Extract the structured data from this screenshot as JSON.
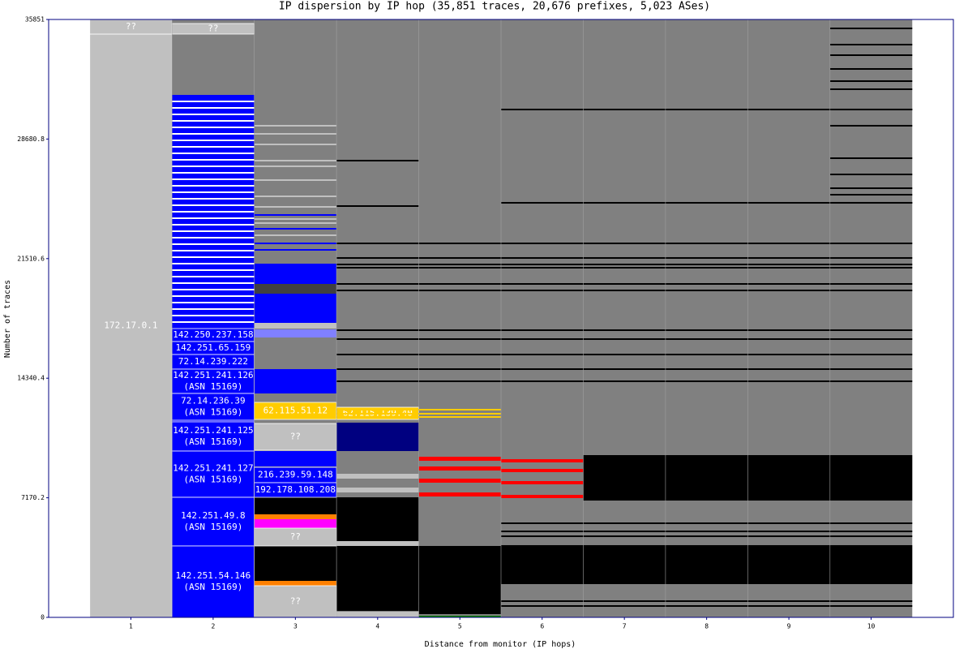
{
  "chart_data": {
    "type": "dispersion",
    "title": "IP dispersion by IP hop (35,851 traces, 20,676 prefixes, 5,023 ASes)",
    "xlabel": "Distance from monitor (IP hops)",
    "ylabel": "Number of traces",
    "xlim": [
      0,
      11
    ],
    "ylim": [
      0,
      35851
    ],
    "xticks": [
      1,
      2,
      3,
      4,
      5,
      6,
      7,
      8,
      9,
      10
    ],
    "yticks": [
      0,
      7170.2,
      14340.4,
      21510.6,
      28680.8,
      35851
    ],
    "segments": [
      {
        "hops": [
          1
        ],
        "range": [
          0,
          34976
        ],
        "color": "#c0c0c0",
        "label": "172.17.0.1"
      },
      {
        "hops": [
          1
        ],
        "range": [
          34976,
          35851
        ],
        "color": "#c0c0c0",
        "label": "??"
      },
      {
        "hops": [
          2,
          3,
          4,
          5,
          6,
          7,
          8,
          9,
          10
        ],
        "range": [
          0,
          35851
        ],
        "color": "#808080"
      },
      {
        "hops": [
          2
        ],
        "range": [
          34976,
          35608
        ],
        "color": "#c0c0c0",
        "label": "??"
      },
      {
        "hops": [
          2
        ],
        "range": [
          0,
          31328
        ],
        "color": "#0000ff"
      },
      {
        "hops": [
          3
        ],
        "range": [
          17561,
          21209
        ],
        "color": "#0000ff"
      },
      {
        "hops": [
          3
        ],
        "range": [
          19409,
          19993
        ],
        "color": "#404040"
      },
      {
        "hops": [
          3
        ],
        "range": [
          17318,
          17658
        ],
        "color": "#c0c0c0"
      },
      {
        "hops": [
          3
        ],
        "range": [
          16782,
          17269
        ],
        "color": "#8080ff"
      },
      {
        "hops": [
          3
        ],
        "range": [
          13426,
          14885
        ],
        "color": "#0000ff"
      },
      {
        "hops": [
          3
        ],
        "range": [
          9048,
          9972
        ],
        "color": "#0000ff"
      },
      {
        "hops": [
          3
        ],
        "range": [
          6178,
          7199
        ],
        "color": "#000000"
      },
      {
        "hops": [
          3
        ],
        "range": [
          5886,
          6178
        ],
        "color": "#ff8000"
      },
      {
        "hops": [
          3
        ],
        "range": [
          5351,
          5886
        ],
        "color": "#ff00ff"
      },
      {
        "hops": [
          3
        ],
        "range": [
          2189,
          4281
        ],
        "color": "#000000"
      },
      {
        "hops": [
          3
        ],
        "range": [
          1897,
          2189
        ],
        "color": "#ff8000"
      },
      {
        "hops": [
          4
        ],
        "range": [
          9972,
          11675
        ],
        "color": "#000080"
      },
      {
        "hops": [
          4
        ],
        "range": [
          4573,
          7199
        ],
        "color": "#000000"
      },
      {
        "hops": [
          4
        ],
        "range": [
          4281,
          4573
        ],
        "color": "#c0c0c0"
      },
      {
        "hops": [
          4
        ],
        "range": [
          389,
          4281
        ],
        "color": "#000000"
      },
      {
        "hops": [
          4
        ],
        "range": [
          0,
          340
        ],
        "color": "#c0c0c0"
      },
      {
        "hops": [
          4
        ],
        "range": [
          8318,
          8610
        ],
        "color": "#c0c0c0"
      },
      {
        "hops": [
          4
        ],
        "range": [
          7491,
          7783
        ],
        "color": "#c0c0c0"
      },
      {
        "hops": [
          5
        ],
        "range": [
          194,
          4281
        ],
        "color": "#000000"
      },
      {
        "hops": [
          5
        ],
        "range": [
          0,
          97
        ],
        "color": "#008000"
      },
      {
        "hops": [
          5
        ],
        "range": [
          9389,
          9632
        ],
        "color": "#ff0000"
      },
      {
        "hops": [
          5
        ],
        "range": [
          8804,
          9048
        ],
        "color": "#ff0000"
      },
      {
        "hops": [
          5
        ],
        "range": [
          8075,
          8318
        ],
        "color": "#ff0000"
      },
      {
        "hops": [
          5
        ],
        "range": [
          7248,
          7491
        ],
        "color": "#ff0000"
      },
      {
        "hops": [
          6,
          7,
          8,
          9,
          10
        ],
        "range": [
          1994,
          4330
        ],
        "color": "#000000"
      },
      {
        "hops": [
          7,
          8,
          9,
          10
        ],
        "range": [
          7004,
          9729
        ],
        "color": "#000000"
      },
      {
        "hops": [
          6
        ],
        "range": [
          9291,
          9486
        ],
        "color": "#ff0000"
      },
      {
        "hops": [
          6
        ],
        "range": [
          8707,
          8902
        ],
        "color": "#ff0000"
      },
      {
        "hops": [
          6
        ],
        "range": [
          7977,
          8172
        ],
        "color": "#ff0000"
      },
      {
        "hops": [
          6
        ],
        "range": [
          7151,
          7346
        ],
        "color": "#ff0000"
      },
      {
        "hops": [
          2
        ],
        "range": [
          16539,
          17318
        ],
        "color": "#0000ff",
        "label": "142.250.237.158"
      },
      {
        "hops": [
          2
        ],
        "range": [
          15761,
          16539
        ],
        "color": "#0000ff",
        "label": "142.251.65.159"
      },
      {
        "hops": [
          2
        ],
        "range": [
          14885,
          15761
        ],
        "color": "#0000ff",
        "label": "72.14.239.222"
      },
      {
        "hops": [
          2
        ],
        "range": [
          13426,
          14885
        ],
        "color": "#0000ff",
        "label": "142.251.241.126",
        "asn": "(ASN 15169)"
      },
      {
        "hops": [
          2
        ],
        "range": [
          11821,
          13426
        ],
        "color": "#0000ff",
        "label": "72.14.236.39",
        "asn": "(ASN 15169)"
      },
      {
        "hops": [
          2
        ],
        "range": [
          9972,
          11724
        ],
        "color": "#0000ff",
        "label": "142.251.241.125",
        "asn": "(ASN 15169)"
      },
      {
        "hops": [
          2
        ],
        "range": [
          7199,
          9972
        ],
        "color": "#0000ff",
        "label": "142.251.241.127",
        "asn": "(ASN 15169)"
      },
      {
        "hops": [
          2
        ],
        "range": [
          4281,
          7199
        ],
        "color": "#0000ff",
        "label": "142.251.49.8",
        "asn": "(ASN 15169)"
      },
      {
        "hops": [
          2
        ],
        "range": [
          0,
          4281
        ],
        "color": "#0000ff",
        "label": "142.251.54.146",
        "asn": "(ASN 15169)"
      },
      {
        "hops": [
          3
        ],
        "range": [
          11869,
          12891
        ],
        "color": "#ffcc00",
        "label": "62.115.51.12"
      },
      {
        "hops": [
          3
        ],
        "range": [
          10021,
          11626
        ],
        "color": "#c0c0c0",
        "label": "??"
      },
      {
        "hops": [
          3
        ],
        "range": [
          8075,
          8999
        ],
        "color": "#0000ff",
        "label": "216.239.59.148"
      },
      {
        "hops": [
          3
        ],
        "range": [
          7199,
          8075
        ],
        "color": "#0000ff",
        "label": "192.178.108.208"
      },
      {
        "hops": [
          3
        ],
        "range": [
          4281,
          5351
        ],
        "color": "#c0c0c0",
        "label": "??"
      },
      {
        "hops": [
          3
        ],
        "range": [
          0,
          1897
        ],
        "color": "#c0c0c0",
        "label": "??"
      },
      {
        "hops": [
          4
        ],
        "range": [
          11869,
          12599
        ],
        "color": "#ffcc00",
        "label": "62.115.139.40"
      }
    ],
    "stripes": [
      {
        "hops": [
          2
        ],
        "color": "#ffffff",
        "values": [
          30938,
          30549,
          30160,
          29771,
          29382,
          28992,
          28603,
          28214,
          27825,
          27436,
          27047,
          26657,
          26268,
          25879,
          25490,
          25101,
          24712,
          24323,
          23933,
          23544,
          23155,
          22766,
          22377,
          21988,
          21598,
          21209,
          20820,
          20431,
          20042,
          19653,
          19263,
          18874,
          18485,
          18096,
          17707
        ]
      },
      {
        "hops": [
          4,
          5,
          6,
          7,
          8,
          9,
          10
        ],
        "color": "#000000",
        "values": [
          22425,
          21550,
          21161,
          20966,
          19993,
          19604,
          17220,
          16685,
          15761,
          14885,
          14156
        ]
      },
      {
        "hops": [
          10
        ],
        "color": "#000000",
        "values": [
          35316,
          34343,
          33711,
          32884,
          32154,
          31668,
          30452,
          29479,
          27533,
          26560,
          25733,
          25344,
          24858
        ]
      },
      {
        "hops": [
          3
        ],
        "color": "#c0c0c0",
        "values": [
          29479,
          28992,
          28360,
          27387,
          27047,
          26220,
          25246,
          24614,
          23885,
          23641,
          22912
        ]
      },
      {
        "hops": [
          3
        ],
        "color": "#0000ff",
        "values": [
          24128,
          23301,
          22425,
          22036
        ]
      },
      {
        "hops": [
          4,
          5
        ],
        "color": "#ffcc00",
        "values": [
          12453,
          12210,
          12016
        ]
      },
      {
        "hops": [
          6,
          7,
          8,
          9,
          10
        ],
        "color": "#000000",
        "values": [
          30452,
          24858,
          5643,
          5156,
          4864
        ]
      },
      {
        "hops": [
          5,
          6,
          7,
          8,
          9,
          10
        ],
        "color": "#000000",
        "values": [
          973,
          681
        ]
      },
      {
        "hops": [
          4
        ],
        "color": "#000000",
        "values": [
          27387,
          24663
        ]
      }
    ]
  }
}
